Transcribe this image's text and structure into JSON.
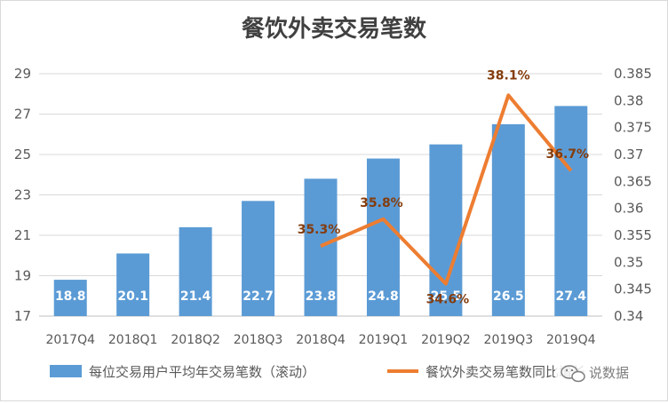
{
  "chart_data": {
    "type": "bar",
    "title": "餐饮外卖交易笔数",
    "categories": [
      "2017Q4",
      "2018Q1",
      "2018Q2",
      "2018Q3",
      "2018Q4",
      "2019Q1",
      "2019Q2",
      "2019Q3",
      "2019Q4"
    ],
    "series": [
      {
        "name": "每位交易用户平均年交易笔数（滚动）",
        "type": "bar",
        "axis": "left",
        "color": "#5b9bd5",
        "values": [
          18.8,
          20.1,
          21.4,
          22.7,
          23.8,
          24.8,
          25.5,
          26.5,
          27.4
        ],
        "labels": [
          "18.8",
          "20.1",
          "21.4",
          "22.7",
          "23.8",
          "24.8",
          "25.5",
          "26.5",
          "27.4"
        ]
      },
      {
        "name": "餐饮外卖交易笔数同比增长",
        "type": "line",
        "axis": "right",
        "color": "#ed7d31",
        "values": [
          null,
          null,
          null,
          null,
          0.353,
          0.358,
          0.346,
          0.381,
          0.367
        ],
        "labels": [
          "",
          "",
          "",
          "",
          "35.3%",
          "35.8%",
          "34.6%",
          "38.1%",
          "36.7%"
        ]
      }
    ],
    "y_left": {
      "lim": [
        17,
        29
      ],
      "ticks": [
        "17",
        "19",
        "21",
        "23",
        "25",
        "27",
        "29"
      ]
    },
    "y_right": {
      "lim": [
        0.34,
        0.385
      ],
      "ticks": [
        "0.34",
        "0.345",
        "0.35",
        "0.355",
        "0.36",
        "0.365",
        "0.37",
        "0.375",
        "0.38",
        "0.385"
      ]
    },
    "legend": {
      "position": "bottom",
      "items": [
        "每位交易用户平均年交易笔数（滚动）",
        "餐饮外卖交易笔数同比增长"
      ]
    },
    "grid": true
  },
  "watermark": {
    "text": "说数据",
    "icon": "wechat-icon"
  }
}
